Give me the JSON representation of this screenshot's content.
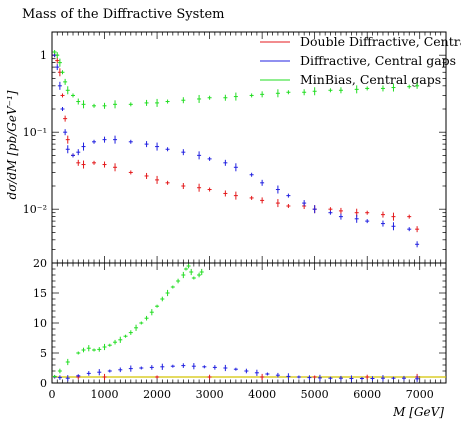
{
  "chart_data": [
    {
      "type": "scatter",
      "panel": "main",
      "title": "Mass of the Diffractive System",
      "xlabel": "M [GeV]",
      "ylabel": "dσ/dM [pb/GeV⁻¹]",
      "yscale": "log",
      "xlim": [
        0,
        7500
      ],
      "ylim": [
        0.002,
        2
      ],
      "y_ticks": [
        {
          "value": 1,
          "label": "1"
        },
        {
          "value": 0.1,
          "label": "10⁻¹"
        },
        {
          "value": 0.01,
          "label": "10⁻²"
        }
      ],
      "legend_position": "top-right",
      "series": [
        {
          "name": "Double Diffractive, Central gaps",
          "color": "#e41a1c",
          "x": [
            50,
            100,
            150,
            200,
            250,
            300,
            400,
            500,
            600,
            800,
            1000,
            1200,
            1500,
            1800,
            2000,
            2200,
            2500,
            2800,
            3000,
            3300,
            3500,
            3800,
            4000,
            4300,
            4500,
            4800,
            5000,
            5300,
            5500,
            5800,
            6000,
            6300,
            6500,
            6800,
            6950
          ],
          "y": [
            1.0,
            0.85,
            0.6,
            0.3,
            0.15,
            0.08,
            0.05,
            0.04,
            0.038,
            0.04,
            0.038,
            0.035,
            0.03,
            0.027,
            0.024,
            0.022,
            0.02,
            0.019,
            0.018,
            0.016,
            0.015,
            0.014,
            0.013,
            0.012,
            0.011,
            0.011,
            0.01,
            0.01,
            0.0095,
            0.009,
            0.009,
            0.0085,
            0.008,
            0.008,
            0.0055
          ]
        },
        {
          "name": "Diffractive, Central gaps",
          "color": "#2020e0",
          "x": [
            50,
            100,
            150,
            200,
            250,
            300,
            400,
            500,
            600,
            800,
            1000,
            1200,
            1500,
            1800,
            2000,
            2200,
            2500,
            2800,
            3000,
            3300,
            3500,
            3800,
            4000,
            4300,
            4500,
            4800,
            5000,
            5300,
            5500,
            5800,
            6000,
            6300,
            6500,
            6800,
            6950
          ],
          "y": [
            1.0,
            0.7,
            0.4,
            0.2,
            0.1,
            0.06,
            0.05,
            0.055,
            0.065,
            0.075,
            0.08,
            0.08,
            0.075,
            0.07,
            0.065,
            0.06,
            0.055,
            0.05,
            0.045,
            0.04,
            0.035,
            0.028,
            0.022,
            0.018,
            0.015,
            0.012,
            0.01,
            0.009,
            0.008,
            0.0075,
            0.007,
            0.0065,
            0.006,
            0.0055,
            0.0035
          ]
        },
        {
          "name": "MinBias, Central gaps",
          "color": "#22dd22",
          "x": [
            50,
            100,
            150,
            200,
            250,
            300,
            400,
            500,
            600,
            800,
            1000,
            1200,
            1500,
            1800,
            2000,
            2200,
            2500,
            2800,
            3000,
            3300,
            3500,
            3800,
            4000,
            4300,
            4500,
            4800,
            5000,
            5300,
            5500,
            5800,
            6000,
            6300,
            6500,
            6800,
            6950
          ],
          "y": [
            1.1,
            1.0,
            0.8,
            0.6,
            0.45,
            0.35,
            0.3,
            0.25,
            0.23,
            0.22,
            0.22,
            0.23,
            0.23,
            0.24,
            0.24,
            0.25,
            0.26,
            0.27,
            0.28,
            0.28,
            0.29,
            0.3,
            0.31,
            0.32,
            0.33,
            0.33,
            0.34,
            0.35,
            0.35,
            0.36,
            0.37,
            0.37,
            0.38,
            0.39,
            0.4
          ]
        }
      ]
    },
    {
      "type": "scatter",
      "panel": "ratio",
      "xlabel": "M [GeV]",
      "xlim": [
        0,
        7500
      ],
      "ylim": [
        0,
        20
      ],
      "x_ticks": [
        0,
        1000,
        2000,
        3000,
        4000,
        5000,
        6000,
        7000
      ],
      "y_ticks": [
        0,
        5,
        10,
        15,
        20
      ],
      "reference_line": {
        "y": 1,
        "color": "#d4c400"
      },
      "series": [
        {
          "color": "#e41a1c",
          "x": [
            50,
            500,
            1000,
            2000,
            3000,
            4000,
            5000,
            6000,
            6950
          ],
          "y": [
            1,
            1,
            1,
            1,
            1,
            1,
            1,
            1,
            1
          ]
        },
        {
          "color": "#2020e0",
          "x": [
            50,
            150,
            300,
            500,
            700,
            900,
            1100,
            1300,
            1500,
            1700,
            1900,
            2100,
            2300,
            2500,
            2700,
            2900,
            3100,
            3300,
            3500,
            3700,
            3900,
            4100,
            4300,
            4500,
            4700,
            4900,
            5100,
            5300,
            5500,
            5700,
            5900,
            6100,
            6300,
            6500,
            6700,
            6950
          ],
          "y": [
            1.0,
            0.9,
            0.8,
            1.2,
            1.6,
            1.8,
            2.0,
            2.2,
            2.4,
            2.5,
            2.6,
            2.7,
            2.8,
            2.9,
            2.8,
            2.7,
            2.6,
            2.5,
            2.3,
            2.0,
            1.7,
            1.5,
            1.3,
            1.1,
            1.0,
            0.9,
            0.85,
            0.8,
            0.8,
            0.75,
            0.75,
            0.75,
            0.8,
            0.8,
            0.8,
            0.7
          ]
        },
        {
          "color": "#22dd22",
          "x": [
            50,
            150,
            300,
            500,
            600,
            700,
            800,
            900,
            1000,
            1100,
            1200,
            1300,
            1400,
            1500,
            1600,
            1700,
            1800,
            1900,
            2000,
            2100,
            2200,
            2300,
            2400,
            2500,
            2550,
            2600,
            2650,
            2700,
            2800,
            2850
          ],
          "y": [
            1.1,
            2.0,
            3.5,
            5.0,
            5.5,
            5.8,
            5.5,
            5.6,
            6.0,
            6.3,
            6.8,
            7.2,
            7.8,
            8.4,
            9.2,
            10.0,
            10.8,
            11.8,
            12.8,
            14.0,
            15.0,
            16.0,
            17.0,
            18.0,
            19.0,
            19.5,
            18.5,
            17.5,
            18.0,
            18.5
          ]
        }
      ]
    }
  ]
}
